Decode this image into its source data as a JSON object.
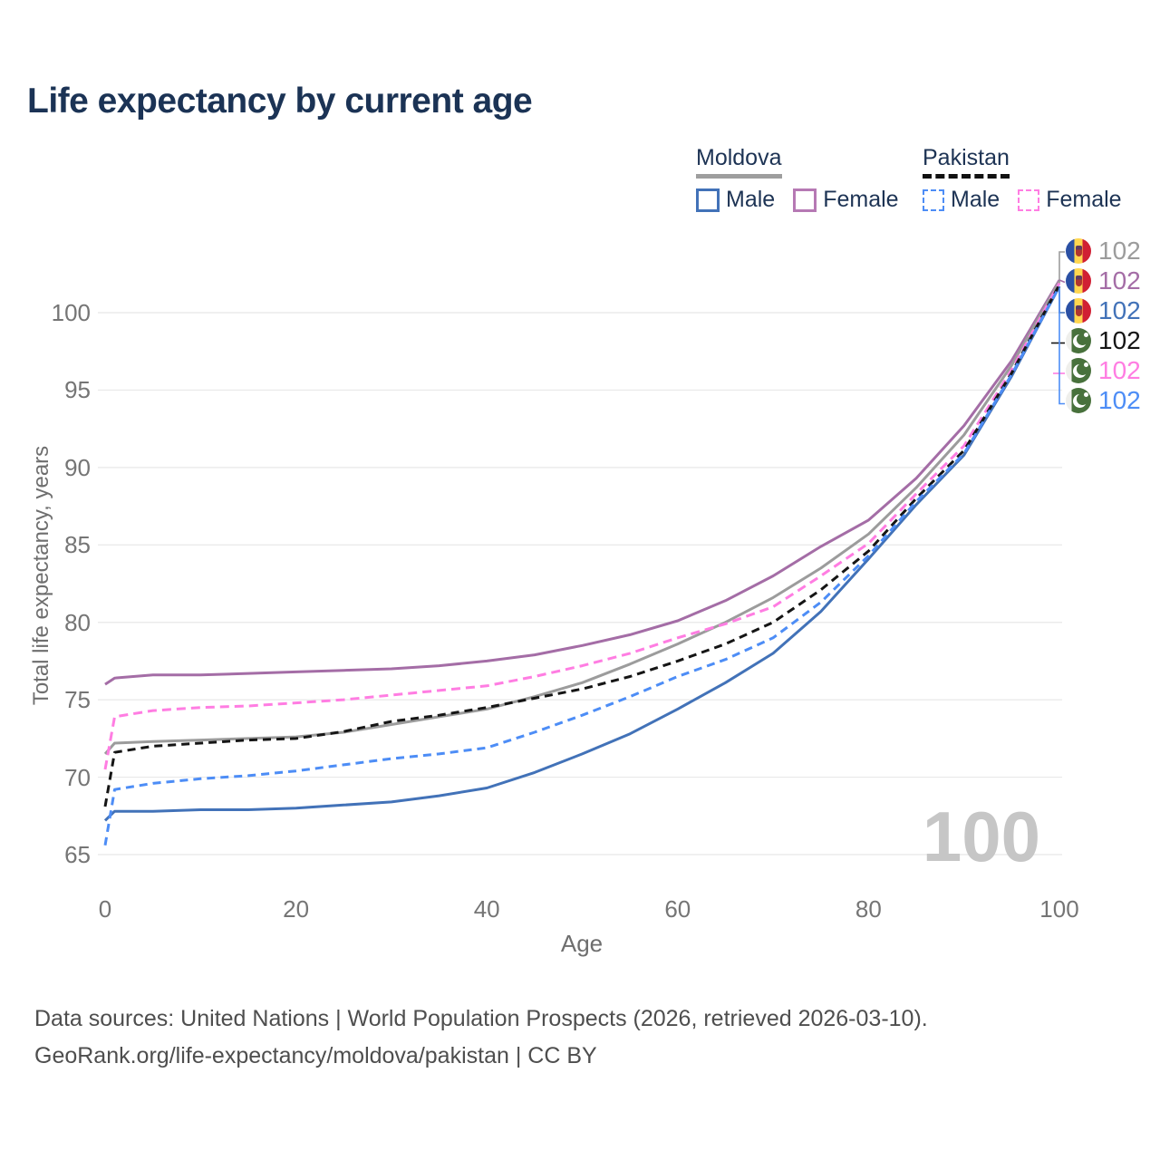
{
  "title": "Life expectancy by current age",
  "legend": {
    "groups": [
      {
        "country": "Moldova",
        "style": "solid",
        "items": [
          {
            "label": "Male",
            "color": "#4272b8"
          },
          {
            "label": "Female",
            "color": "#b679b4"
          }
        ]
      },
      {
        "country": "Pakistan",
        "style": "dashed",
        "items": [
          {
            "label": "Male",
            "color": "#4d8df6"
          },
          {
            "label": "Female",
            "color": "#ff7de2"
          }
        ]
      }
    ]
  },
  "chart_data": {
    "type": "line",
    "title": "Life expectancy by current age",
    "xlabel": "Age",
    "ylabel": "Total life expectancy, years",
    "watermark": "100",
    "xticks": [
      0,
      20,
      40,
      60,
      80,
      100
    ],
    "yticks": [
      65,
      70,
      75,
      80,
      85,
      90,
      95,
      100
    ],
    "xlim": [
      0,
      100
    ],
    "ylim": [
      65,
      102.5
    ],
    "grid": "horizontal",
    "legend_position": "top-right",
    "x": [
      0,
      1,
      5,
      10,
      15,
      20,
      25,
      30,
      35,
      40,
      45,
      50,
      55,
      60,
      65,
      70,
      75,
      80,
      85,
      90,
      95,
      100
    ],
    "series": [
      {
        "name": "Moldova Female",
        "country": "Moldova",
        "sex": "Female",
        "color": "#a46da6",
        "dash": "solid",
        "values": [
          76.0,
          76.4,
          76.6,
          76.6,
          76.7,
          76.8,
          76.9,
          77.0,
          77.2,
          77.5,
          77.9,
          78.5,
          79.2,
          80.1,
          81.4,
          83.0,
          84.9,
          86.6,
          89.3,
          92.7,
          96.9,
          102.1
        ]
      },
      {
        "name": "Moldova Both sexes",
        "country": "Moldova",
        "sex": "Both",
        "color": "#9c9c9c",
        "dash": "solid",
        "values": [
          71.5,
          72.2,
          72.3,
          72.4,
          72.5,
          72.6,
          72.9,
          73.4,
          73.9,
          74.4,
          75.2,
          76.1,
          77.3,
          78.6,
          80.0,
          81.6,
          83.5,
          85.7,
          88.7,
          92.1,
          96.6,
          102.0
        ]
      },
      {
        "name": "Moldova Male",
        "country": "Moldova",
        "sex": "Male",
        "color": "#4272b8",
        "dash": "solid",
        "values": [
          67.2,
          67.8,
          67.8,
          67.9,
          67.9,
          68.0,
          68.2,
          68.4,
          68.8,
          69.3,
          70.3,
          71.5,
          72.8,
          74.4,
          76.1,
          78.0,
          80.7,
          84.1,
          87.6,
          90.8,
          95.9,
          101.7
        ]
      },
      {
        "name": "Pakistan Female",
        "country": "Pakistan",
        "sex": "Female",
        "color": "#ff7de2",
        "dash": "10 6",
        "values": [
          70.5,
          73.9,
          74.3,
          74.5,
          74.6,
          74.8,
          75.0,
          75.3,
          75.6,
          75.9,
          76.5,
          77.2,
          78.0,
          79.0,
          79.9,
          81.0,
          83.0,
          85.1,
          88.3,
          91.4,
          96.3,
          101.9
        ]
      },
      {
        "name": "Pakistan Both sexes",
        "country": "Pakistan",
        "sex": "Both",
        "color": "#151515",
        "dash": "9 6",
        "values": [
          68.1,
          71.6,
          72.0,
          72.2,
          72.4,
          72.5,
          72.95,
          73.6,
          74.0,
          74.5,
          75.1,
          75.7,
          76.5,
          77.5,
          78.6,
          80.0,
          82.1,
          84.6,
          88.0,
          91.1,
          96.1,
          101.8
        ]
      },
      {
        "name": "Pakistan Male",
        "country": "Pakistan",
        "sex": "Male",
        "color": "#4d8df6",
        "dash": "9 6",
        "values": [
          65.6,
          69.2,
          69.6,
          69.9,
          70.1,
          70.4,
          70.8,
          71.2,
          71.5,
          71.9,
          72.9,
          74.0,
          75.2,
          76.5,
          77.6,
          79.0,
          81.3,
          84.3,
          87.8,
          90.9,
          96.0,
          101.7
        ]
      }
    ]
  },
  "right_labels": [
    {
      "flag": "moldova",
      "value": "102",
      "color": "#9c9c9c"
    },
    {
      "flag": "moldova",
      "value": "102",
      "color": "#a46da6"
    },
    {
      "flag": "moldova",
      "value": "102",
      "color": "#4272b8"
    },
    {
      "flag": "pakistan",
      "value": "102",
      "color": "#151515"
    },
    {
      "flag": "pakistan",
      "value": "102",
      "color": "#ff7de2"
    },
    {
      "flag": "pakistan",
      "value": "102",
      "color": "#4d8df6"
    }
  ],
  "footer": {
    "line1": "Data sources: United Nations | World Population Prospects (2026, retrieved 2026-03-10).",
    "line2": "GeoRank.org/life-expectancy/moldova/pakistan | CC BY"
  },
  "colors": {
    "title_text": "#1b3355",
    "gridline": "#e8e8e8",
    "tick_text": "#757575",
    "watermark": "#c6c6c6"
  }
}
